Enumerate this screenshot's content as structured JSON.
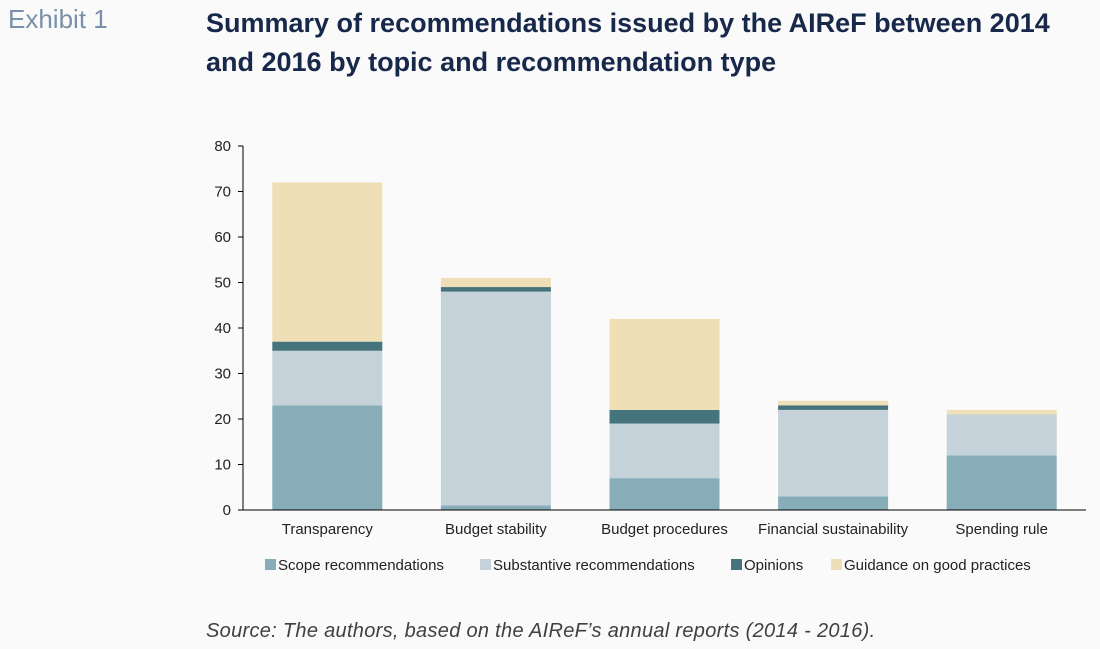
{
  "header": {
    "exhibit": "Exhibit 1",
    "title": "Summary of recommendations issued by the AIReF between 2014 and 2016 by topic and recommendation type"
  },
  "source": "Source: The authors, based on the AIReF’s annual reports (2014 - 2016).",
  "chart_data": {
    "type": "bar",
    "stacked": true,
    "categories": [
      "Transparency",
      "Budget stability",
      "Budget procedures",
      "Financial sustainability",
      "Spending rule"
    ],
    "series": [
      {
        "name": "Scope recommendations",
        "values": [
          23,
          1,
          7,
          3,
          12
        ],
        "color": "#86adb8"
      },
      {
        "name": "Substantive recommendations",
        "values": [
          12,
          47,
          12,
          19,
          9
        ],
        "color": "#c5d2d9"
      },
      {
        "name": "Opinions",
        "values": [
          2,
          1,
          3,
          1,
          0
        ],
        "color": "#45747c"
      },
      {
        "name": "Guidance on good practices",
        "values": [
          35,
          2,
          20,
          1,
          1
        ],
        "color": "#eedfb6"
      }
    ],
    "yticks": [
      0,
      10,
      20,
      30,
      40,
      50,
      60,
      70,
      80
    ],
    "ylim": [
      0,
      80
    ],
    "grid": false,
    "legend": "bottom"
  }
}
